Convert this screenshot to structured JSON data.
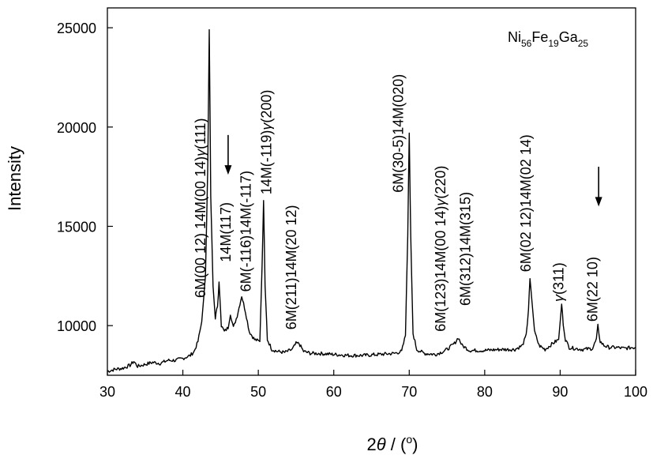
{
  "chart_data": {
    "type": "line",
    "xlabel_prefix": "2",
    "xlabel_theta": "θ",
    "xlabel_suffix": " / (",
    "xlabel_unit": "o",
    "xlabel_end": ")",
    "ylabel": "Intensity",
    "xlim": [
      30,
      100
    ],
    "ylim": [
      7500,
      26000
    ],
    "x_ticks": [
      30,
      40,
      50,
      60,
      70,
      80,
      90,
      100
    ],
    "y_ticks": [
      10000,
      15000,
      20000,
      25000
    ],
    "x_tick_labels": [
      "30",
      "40",
      "50",
      "60",
      "70",
      "80",
      "90",
      "100"
    ],
    "y_tick_labels": [
      "10000",
      "15000",
      "20000",
      "25000"
    ],
    "sample": {
      "parts": [
        {
          "text": "Ni",
          "sub": "56"
        },
        {
          "text": "Fe",
          "sub": "19"
        },
        {
          "text": "Ga",
          "sub": "25"
        }
      ]
    },
    "series": [
      {
        "x": [
          30.0,
          31.0,
          32.0,
          33.0,
          33.5,
          34.0,
          35.0,
          36.0,
          37.0,
          38.0,
          39.0,
          40.0,
          41.0,
          41.5,
          42.0,
          42.5,
          43.0,
          43.3,
          43.5,
          43.7,
          44.0,
          44.3,
          44.6,
          44.8,
          45.1,
          45.5,
          46.0,
          46.3,
          46.7,
          47.2,
          47.8,
          48.3,
          48.8,
          49.5,
          50.2,
          50.5,
          50.7,
          50.9,
          51.2,
          51.8,
          52.5,
          53.5,
          54.5,
          55.0,
          55.4,
          56.0,
          57.0,
          58.0,
          60.0,
          62.0,
          64.0,
          66.0,
          68.0,
          69.0,
          69.5,
          69.8,
          70.0,
          70.2,
          70.5,
          71.0,
          72.0,
          73.5,
          74.5,
          75.0,
          76.0,
          76.5,
          77.0,
          78.0,
          80.0,
          82.0,
          84.0,
          85.0,
          85.5,
          85.8,
          86.0,
          86.2,
          86.6,
          87.2,
          88.0,
          89.0,
          89.8,
          90.2,
          90.4,
          90.7,
          91.2,
          92.0,
          93.0,
          94.3,
          94.8,
          95.0,
          95.3,
          95.8,
          96.5,
          97.5,
          98.5,
          99.5,
          100.0
        ],
        "y": [
          7700,
          7800,
          7850,
          8000,
          8200,
          7950,
          8050,
          8150,
          8100,
          8250,
          8250,
          8350,
          8500,
          8700,
          9200,
          10200,
          12500,
          18000,
          24900,
          16500,
          12000,
          10400,
          11000,
          12200,
          10000,
          9700,
          9900,
          10600,
          9900,
          10500,
          11500,
          10700,
          9700,
          9300,
          9200,
          13000,
          16300,
          12000,
          9300,
          8800,
          8700,
          8650,
          8800,
          9100,
          9100,
          8700,
          8600,
          8600,
          8550,
          8500,
          8500,
          8550,
          8600,
          8700,
          9500,
          14500,
          19700,
          14500,
          9600,
          8800,
          8600,
          8550,
          8700,
          8800,
          9100,
          9400,
          9000,
          8750,
          8750,
          8800,
          8800,
          9000,
          9500,
          10800,
          12400,
          11500,
          9700,
          9000,
          8800,
          9100,
          9300,
          11100,
          10100,
          9300,
          8900,
          8850,
          8800,
          8850,
          9300,
          10000,
          9200,
          9000,
          8900,
          8900,
          8850,
          8900,
          8900
        ]
      }
    ],
    "peak_labels": [
      {
        "x": 43.0,
        "y": 11400,
        "text": "6M(00 12) 14M(00 14)γ(111)"
      },
      {
        "x": 46.3,
        "y": 13200,
        "text": "14M(117)"
      },
      {
        "x": 49.0,
        "y": 11700,
        "text": "6M(-116)14M(-117)"
      },
      {
        "x": 51.7,
        "y": 16600,
        "text": "14M(-119)γ(200)"
      },
      {
        "x": 55.0,
        "y": 9800,
        "text": "6M(211)14M(20 12)"
      },
      {
        "x": 69.2,
        "y": 16700,
        "text": "6M(30-5)14M(020)"
      },
      {
        "x": 74.8,
        "y": 9700,
        "text": "6M(123)14M(00 14)γ(220)"
      },
      {
        "x": 78.1,
        "y": 11000,
        "text": "6M(312)14M(315)"
      },
      {
        "x": 86.1,
        "y": 12700,
        "text": "6M(02 12)14M(02 14)"
      },
      {
        "x": 90.4,
        "y": 11200,
        "text": "γ(311)"
      },
      {
        "x": 94.9,
        "y": 10200,
        "text": "6M(22 10)"
      }
    ],
    "arrows": [
      {
        "x": 46.0,
        "y_top": 19600,
        "y_bottom": 17600
      },
      {
        "x": 95.1,
        "y_top": 18000,
        "y_bottom": 16000
      }
    ]
  }
}
